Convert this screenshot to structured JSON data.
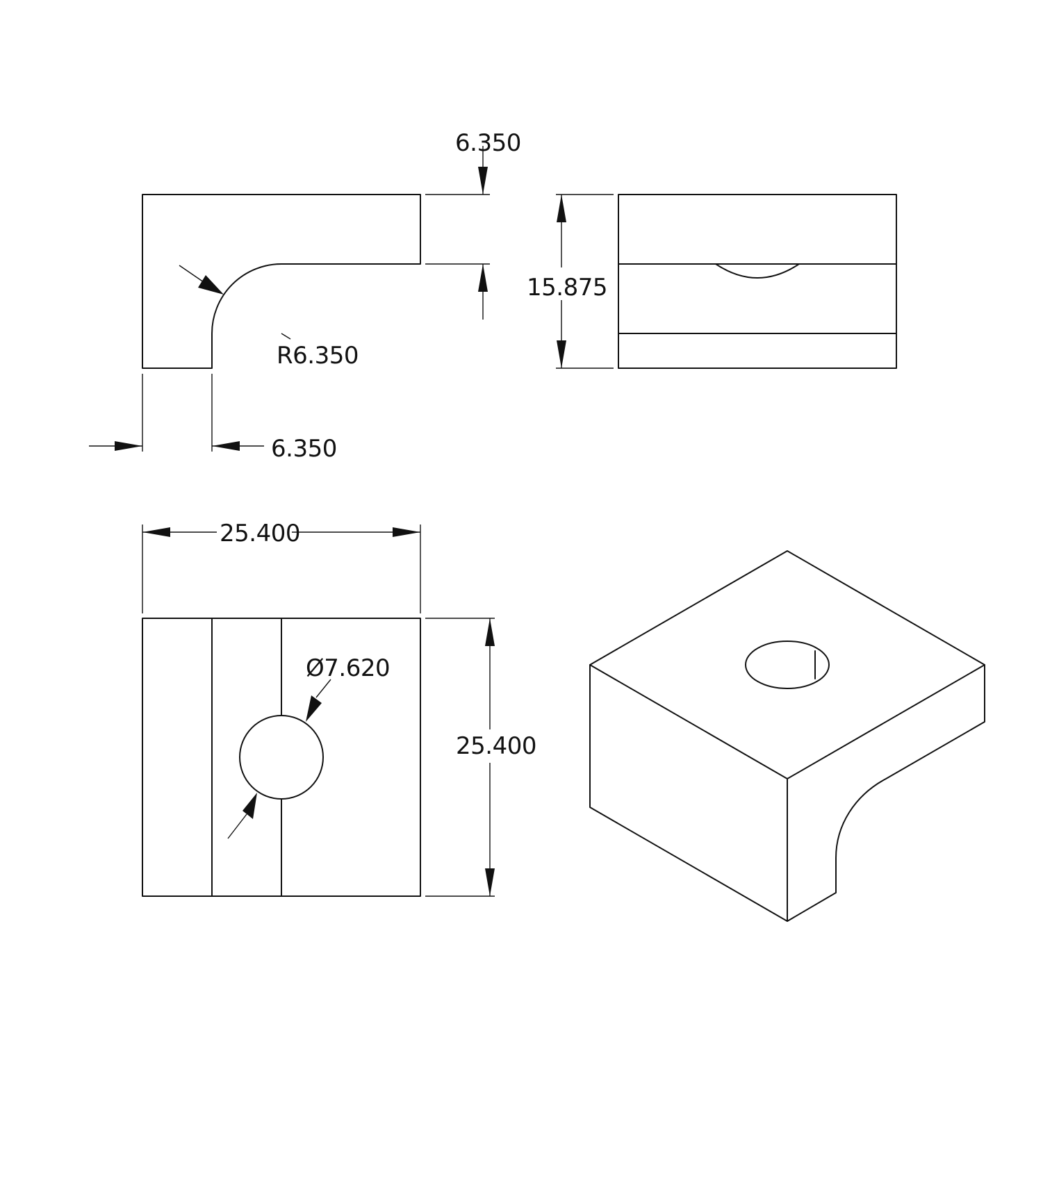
{
  "drawing": {
    "dimensions": {
      "side_top_thickness": "6.350",
      "side_fillet_radius": "R6.350",
      "side_leg_width": "6.350",
      "front_height": "15.875",
      "top_width": "25.400",
      "top_depth": "25.400",
      "hole_diameter": "Ø7.620"
    }
  }
}
